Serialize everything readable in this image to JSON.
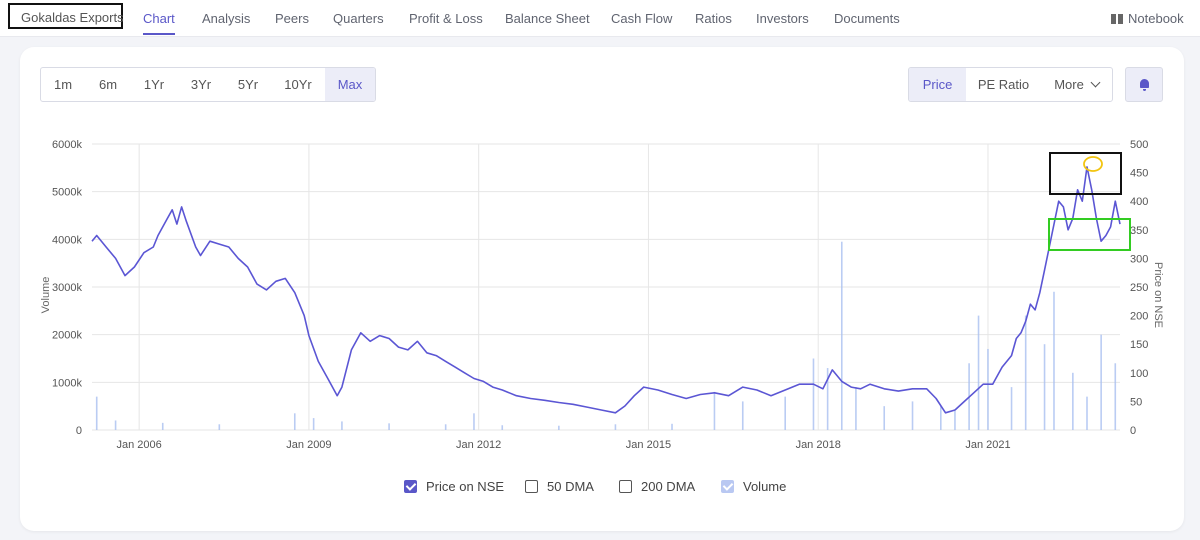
{
  "nav": {
    "company": "Gokaldas Exports",
    "tabs": [
      "Chart",
      "Analysis",
      "Peers",
      "Quarters",
      "Profit & Loss",
      "Balance Sheet",
      "Cash Flow",
      "Ratios",
      "Investors",
      "Documents"
    ],
    "active_tab": "Chart",
    "notebook": "Notebook",
    "notebook_icon": "book-icon"
  },
  "range_buttons": [
    "1m",
    "6m",
    "1Yr",
    "3Yr",
    "5Yr",
    "10Yr",
    "Max"
  ],
  "active_range": "Max",
  "metric_buttons": [
    "Price",
    "PE Ratio",
    "More"
  ],
  "active_metric": "Price",
  "alert_icon": "bell-icon",
  "colors": {
    "accent": "#5a57c8",
    "price_line": "#5b56d4",
    "volume_bar": "#a9bff0",
    "black_box": "#111111",
    "green_box": "#33cc22",
    "yellow_circle": "#f2c40f"
  },
  "legend": [
    {
      "label": "Price on NSE",
      "checked": true
    },
    {
      "label": "50 DMA",
      "checked": false
    },
    {
      "label": "200 DMA",
      "checked": false
    },
    {
      "label": "Volume",
      "checked": true
    }
  ],
  "chart_data": {
    "type": "line",
    "title": "",
    "xlabel": "",
    "ylabel_left": "Volume",
    "ylabel_right": "Price on NSE",
    "x_ticks": [
      "Jan 2006",
      "Jan 2009",
      "Jan 2012",
      "Jan 2015",
      "Jan 2018",
      "Jan 2021"
    ],
    "x_range": [
      "2005-03",
      "2023-05"
    ],
    "y_left_ticks": [
      "0",
      "1000k",
      "2000k",
      "3000k",
      "4000k",
      "5000k",
      "6000k"
    ],
    "y_left_range": [
      0,
      6000
    ],
    "y_right_ticks": [
      "0",
      "50",
      "100",
      "150",
      "200",
      "250",
      "300",
      "350",
      "400",
      "450",
      "500"
    ],
    "y_right_range": [
      0,
      500
    ],
    "grid": true,
    "legend_position": "bottom",
    "series": [
      {
        "name": "Price on NSE",
        "axis": "right",
        "points": [
          [
            "2005-03",
            330
          ],
          [
            "2005-04",
            340
          ],
          [
            "2005-06",
            320
          ],
          [
            "2005-08",
            300
          ],
          [
            "2005-10",
            270
          ],
          [
            "2005-12",
            285
          ],
          [
            "2006-02",
            310
          ],
          [
            "2006-04",
            320
          ],
          [
            "2006-05",
            340
          ],
          [
            "2006-07",
            370
          ],
          [
            "2006-08",
            385
          ],
          [
            "2006-09",
            360
          ],
          [
            "2006-10",
            390
          ],
          [
            "2006-11",
            365
          ],
          [
            "2007-01",
            320
          ],
          [
            "2007-02",
            305
          ],
          [
            "2007-04",
            330
          ],
          [
            "2007-06",
            325
          ],
          [
            "2007-08",
            320
          ],
          [
            "2007-10",
            300
          ],
          [
            "2007-12",
            285
          ],
          [
            "2008-02",
            255
          ],
          [
            "2008-04",
            245
          ],
          [
            "2008-06",
            260
          ],
          [
            "2008-08",
            265
          ],
          [
            "2008-10",
            240
          ],
          [
            "2008-12",
            200
          ],
          [
            "2009-01",
            165
          ],
          [
            "2009-03",
            120
          ],
          [
            "2009-05",
            90
          ],
          [
            "2009-07",
            60
          ],
          [
            "2009-08",
            75
          ],
          [
            "2009-10",
            140
          ],
          [
            "2009-12",
            170
          ],
          [
            "2010-02",
            155
          ],
          [
            "2010-04",
            165
          ],
          [
            "2010-06",
            160
          ],
          [
            "2010-08",
            145
          ],
          [
            "2010-10",
            140
          ],
          [
            "2010-12",
            155
          ],
          [
            "2011-02",
            135
          ],
          [
            "2011-04",
            130
          ],
          [
            "2011-06",
            120
          ],
          [
            "2011-08",
            110
          ],
          [
            "2011-10",
            100
          ],
          [
            "2011-12",
            90
          ],
          [
            "2012-02",
            85
          ],
          [
            "2012-04",
            75
          ],
          [
            "2012-06",
            70
          ],
          [
            "2012-09",
            60
          ],
          [
            "2012-12",
            55
          ],
          [
            "2013-03",
            52
          ],
          [
            "2013-06",
            48
          ],
          [
            "2013-09",
            45
          ],
          [
            "2013-12",
            40
          ],
          [
            "2014-03",
            35
          ],
          [
            "2014-06",
            30
          ],
          [
            "2014-08",
            42
          ],
          [
            "2014-10",
            60
          ],
          [
            "2014-12",
            75
          ],
          [
            "2015-03",
            70
          ],
          [
            "2015-06",
            62
          ],
          [
            "2015-09",
            55
          ],
          [
            "2015-12",
            62
          ],
          [
            "2016-03",
            65
          ],
          [
            "2016-06",
            60
          ],
          [
            "2016-09",
            75
          ],
          [
            "2016-12",
            70
          ],
          [
            "2017-03",
            60
          ],
          [
            "2017-06",
            70
          ],
          [
            "2017-09",
            80
          ],
          [
            "2017-12",
            80
          ],
          [
            "2018-02",
            72
          ],
          [
            "2018-04",
            105
          ],
          [
            "2018-06",
            85
          ],
          [
            "2018-08",
            75
          ],
          [
            "2018-10",
            72
          ],
          [
            "2018-12",
            80
          ],
          [
            "2019-03",
            72
          ],
          [
            "2019-06",
            68
          ],
          [
            "2019-09",
            72
          ],
          [
            "2019-12",
            72
          ],
          [
            "2020-02",
            55
          ],
          [
            "2020-04",
            30
          ],
          [
            "2020-06",
            35
          ],
          [
            "2020-08",
            50
          ],
          [
            "2020-10",
            65
          ],
          [
            "2020-12",
            80
          ],
          [
            "2021-02",
            80
          ],
          [
            "2021-04",
            110
          ],
          [
            "2021-06",
            130
          ],
          [
            "2021-07",
            160
          ],
          [
            "2021-08",
            170
          ],
          [
            "2021-09",
            190
          ],
          [
            "2021-10",
            220
          ],
          [
            "2021-11",
            210
          ],
          [
            "2021-12",
            240
          ],
          [
            "2022-01",
            280
          ],
          [
            "2022-02",
            320
          ],
          [
            "2022-03",
            360
          ],
          [
            "2022-04",
            400
          ],
          [
            "2022-05",
            390
          ],
          [
            "2022-06",
            350
          ],
          [
            "2022-07",
            370
          ],
          [
            "2022-08",
            420
          ],
          [
            "2022-09",
            400
          ],
          [
            "2022-10",
            460
          ],
          [
            "2022-11",
            420
          ],
          [
            "2022-12",
            370
          ],
          [
            "2023-01",
            330
          ],
          [
            "2023-02",
            340
          ],
          [
            "2023-03",
            355
          ],
          [
            "2023-04",
            400
          ],
          [
            "2023-05",
            360
          ]
        ]
      },
      {
        "name": "Volume",
        "axis": "left",
        "type": "bar",
        "points": [
          [
            "2005-04",
            700
          ],
          [
            "2005-08",
            200
          ],
          [
            "2006-06",
            150
          ],
          [
            "2007-06",
            120
          ],
          [
            "2008-10",
            350
          ],
          [
            "2009-02",
            250
          ],
          [
            "2009-08",
            180
          ],
          [
            "2010-06",
            140
          ],
          [
            "2011-06",
            120
          ],
          [
            "2011-12",
            350
          ],
          [
            "2012-06",
            100
          ],
          [
            "2013-06",
            90
          ],
          [
            "2014-06",
            120
          ],
          [
            "2015-06",
            130
          ],
          [
            "2016-03",
            800
          ],
          [
            "2016-09",
            600
          ],
          [
            "2017-06",
            700
          ],
          [
            "2017-12",
            1500
          ],
          [
            "2018-03",
            1300
          ],
          [
            "2018-06",
            3950
          ],
          [
            "2018-09",
            900
          ],
          [
            "2019-03",
            500
          ],
          [
            "2019-09",
            600
          ],
          [
            "2020-03",
            500
          ],
          [
            "2020-06",
            400
          ],
          [
            "2020-09",
            1400
          ],
          [
            "2020-11",
            2400
          ],
          [
            "2021-01",
            1700
          ],
          [
            "2021-06",
            900
          ],
          [
            "2021-09",
            2400
          ],
          [
            "2022-01",
            1800
          ],
          [
            "2022-03",
            2900
          ],
          [
            "2022-07",
            1200
          ],
          [
            "2022-10",
            700
          ],
          [
            "2023-01",
            2000
          ],
          [
            "2023-04",
            1400
          ]
        ]
      }
    ]
  }
}
